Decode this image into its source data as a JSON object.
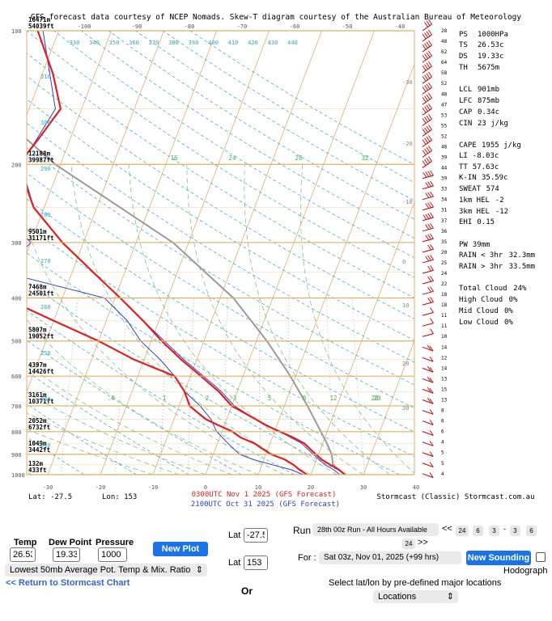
{
  "chart_data": {
    "type": "skew-t",
    "title": "GFS forecast data courtesy of NCEP Nomads.  Skew-T diagram courtesy of the Australian Bureau of Meteorology",
    "grid": true,
    "x_temp_ticks": [
      -30,
      -20,
      -10,
      0,
      10,
      20,
      30,
      40
    ],
    "top_temp_ticks": [
      -100,
      -90,
      -80,
      -70,
      -60,
      -50,
      -40
    ],
    "right_temp_ticks": [
      -30,
      -20,
      -10,
      0,
      10,
      20,
      30,
      40
    ],
    "theta_labels": [
      "330",
      "340",
      "350",
      "360",
      "370",
      "380",
      "390",
      "400",
      "410",
      "420",
      "430",
      "440"
    ],
    "theta_left_labels": [
      "310",
      "300",
      "290",
      "280",
      "270",
      "260",
      "250",
      "240",
      "230"
    ],
    "mixing_ratio_labels": [
      ".4",
      "1",
      "2",
      "3",
      "5",
      "8",
      "12",
      "20",
      "28",
      "24",
      "32",
      "16",
      "20"
    ],
    "pressure_levels": [
      {
        "p": 100,
        "label": "100",
        "h_m": "16471m",
        "h_ft": "54039ft"
      },
      {
        "p": 200,
        "label": "200",
        "h_m": "12188m",
        "h_ft": "39987ft"
      },
      {
        "p": 300,
        "label": "300",
        "h_m": "9501m",
        "h_ft": "31171ft"
      },
      {
        "p": 400,
        "label": "400",
        "h_m": "7468m",
        "h_ft": "24501ft"
      },
      {
        "p": 500,
        "label": "500",
        "h_m": "5807m",
        "h_ft": "19052ft"
      },
      {
        "p": 600,
        "label": "600",
        "h_m": "4397m",
        "h_ft": "14426ft"
      },
      {
        "p": 700,
        "label": "700",
        "h_m": "3161m",
        "h_ft": "10371ft"
      },
      {
        "p": 800,
        "label": "800",
        "h_m": "2052m",
        "h_ft": "6732ft"
      },
      {
        "p": 900,
        "label": "900",
        "h_m": "1049m",
        "h_ft": "3442ft"
      },
      {
        "p": 1000,
        "label": "1000",
        "h_m": "132m",
        "h_ft": "433ft"
      }
    ],
    "series": [
      {
        "name": "0300UTC Nov 1 2025 (GFS Forecast)",
        "color": "#e02020",
        "temperature": [
          [
            1000,
            26.5
          ],
          [
            975,
            25
          ],
          [
            950,
            23
          ],
          [
            925,
            21
          ],
          [
            900,
            19.5
          ],
          [
            875,
            18
          ],
          [
            850,
            16.5
          ],
          [
            825,
            14
          ],
          [
            800,
            11
          ],
          [
            775,
            8
          ],
          [
            750,
            5.5
          ],
          [
            700,
            0
          ],
          [
            650,
            -3.5
          ],
          [
            600,
            -8
          ],
          [
            550,
            -13
          ],
          [
            500,
            -18
          ],
          [
            450,
            -23
          ],
          [
            400,
            -29
          ],
          [
            350,
            -36
          ],
          [
            300,
            -44
          ],
          [
            250,
            -52
          ],
          [
            200,
            -58
          ],
          [
            175,
            -56
          ],
          [
            150,
            -54
          ],
          [
            125,
            -58
          ],
          [
            100,
            -64
          ]
        ],
        "dewpoint": [
          [
            1000,
            19.3
          ],
          [
            975,
            17.5
          ],
          [
            950,
            16
          ],
          [
            925,
            14
          ],
          [
            900,
            11
          ],
          [
            875,
            9
          ],
          [
            850,
            7
          ],
          [
            825,
            4
          ],
          [
            800,
            2
          ],
          [
            775,
            -1
          ],
          [
            750,
            -4
          ],
          [
            700,
            -8
          ],
          [
            650,
            -10
          ],
          [
            600,
            -13
          ],
          [
            550,
            -22
          ],
          [
            500,
            -30
          ],
          [
            450,
            -40
          ],
          [
            400,
            -51
          ],
          [
            350,
            -61
          ],
          [
            300,
            -64
          ],
          [
            250,
            -69
          ],
          [
            200,
            -76
          ],
          [
            150,
            -83
          ],
          [
            100,
            -90
          ]
        ]
      },
      {
        "name": "2100UTC Oct 31 2025 (GFS Forecast)",
        "color": "#3040d0",
        "temperature": [
          [
            1000,
            25.5
          ],
          [
            975,
            24
          ],
          [
            950,
            22
          ],
          [
            925,
            20.5
          ],
          [
            900,
            19
          ],
          [
            875,
            17.5
          ],
          [
            850,
            16
          ],
          [
            800,
            11
          ],
          [
            750,
            5.5
          ],
          [
            700,
            0.5
          ],
          [
            650,
            -3
          ],
          [
            600,
            -7.5
          ],
          [
            550,
            -12.5
          ],
          [
            500,
            -17.5
          ],
          [
            450,
            -23
          ],
          [
            400,
            -29
          ],
          [
            350,
            -36
          ],
          [
            300,
            -44
          ],
          [
            250,
            -52
          ],
          [
            200,
            -57.5
          ],
          [
            150,
            -55
          ],
          [
            100,
            -63
          ]
        ],
        "dewpoint": [
          [
            1000,
            18.5
          ],
          [
            975,
            16
          ],
          [
            950,
            12
          ],
          [
            925,
            8
          ],
          [
            900,
            5
          ],
          [
            850,
            2
          ],
          [
            800,
            -1
          ],
          [
            750,
            -3
          ],
          [
            700,
            -6
          ],
          [
            650,
            -10
          ],
          [
            600,
            -13
          ],
          [
            550,
            -17
          ],
          [
            500,
            -22
          ],
          [
            450,
            -26
          ],
          [
            400,
            -32
          ],
          [
            350,
            -53
          ],
          [
            300,
            -50
          ],
          [
            250,
            -59
          ],
          [
            200,
            -65
          ],
          [
            150,
            -76
          ],
          [
            100,
            -86
          ]
        ]
      },
      {
        "name": "parcel",
        "color": "#999999",
        "temperature": [
          [
            1000,
            26.5
          ],
          [
            950,
            23.5
          ],
          [
            900,
            22.5
          ],
          [
            850,
            20.8
          ],
          [
            800,
            18.8
          ],
          [
            700,
            14.4
          ],
          [
            600,
            9
          ],
          [
            500,
            2
          ],
          [
            400,
            -7.5
          ],
          [
            300,
            -23
          ],
          [
            200,
            -51
          ],
          [
            150,
            -67
          ],
          [
            120,
            -78
          ]
        ]
      }
    ],
    "wind_barb_labels": [
      "28",
      "48",
      "62",
      "64",
      "58",
      "52",
      "48",
      "47",
      "53",
      "55",
      "52",
      "48",
      "39",
      "44",
      "39",
      "33",
      "34",
      "31",
      "37",
      "36",
      "35",
      "20",
      "25",
      "24",
      "22",
      "18",
      "18",
      "11",
      "11",
      "10",
      "14",
      "12",
      "14",
      "13",
      "15",
      "13",
      "8",
      "6",
      "6",
      "4",
      "5",
      "5",
      "4"
    ],
    "indices": [
      {
        "k": "PS",
        "v": "1000HPa"
      },
      {
        "k": "TS",
        "v": "26.53c"
      },
      {
        "k": "DS",
        "v": "19.33c"
      },
      {
        "k": "TH",
        "v": "5675m"
      },
      {
        "k": "LCL",
        "v": "901mb"
      },
      {
        "k": "LFC",
        "v": "875mb"
      },
      {
        "k": "CAP",
        "v": "0.34c"
      },
      {
        "k": "CIN",
        "v": "23 j/kg"
      },
      {
        "k": "CAPE",
        "v": "1955 j/kg"
      },
      {
        "k": "LI",
        "v": "-8.03c"
      },
      {
        "k": "TT",
        "v": "57.63c"
      },
      {
        "k": "K-IN",
        "v": "35.59c"
      },
      {
        "k": "SWEAT",
        "v": "574"
      },
      {
        "k": "1km HEL",
        "v": "-2"
      },
      {
        "k": "3km HEL",
        "v": "-12"
      },
      {
        "k": "EHI",
        "v": "0.15"
      },
      {
        "k": "PW",
        "v": "39mm"
      },
      {
        "k": "RAIN < 3hr",
        "v": "32.3mm"
      },
      {
        "k": "RAIN > 3hr",
        "v": "33.5mm"
      },
      {
        "k": "Total Cloud",
        "v": "24%"
      },
      {
        "k": "High Cloud",
        "v": "0%"
      },
      {
        "k": "Mid Cloud",
        "v": "0%"
      },
      {
        "k": "Low Cloud",
        "v": "0%"
      }
    ],
    "footer_lat": "Lat: -27.5",
    "footer_lon": "Lon: 153",
    "footer_credit": "Stormcast (Classic) Stormcast.com.au",
    "legend_placement": "bottom-center"
  },
  "form": {
    "temp_label": "Temp",
    "temp_value": "26.53",
    "dew_label": "Dew Point",
    "dew_value": "19.33",
    "pressure_label": "Pressure",
    "pressure_value": "1000",
    "new_plot": "New Plot",
    "avg_select": "Lowest 50mb Average Pot. Temp & Mix. Ratio",
    "return_link": "<< Return to Stormcast Chart",
    "lat_label": "Lat",
    "lat_value": "-27.5",
    "lat2_label": "Lat",
    "lat2_value": "153",
    "or_label": "Or",
    "run_label": "Run",
    "run_select": "28th 00z Run - All Hours Available",
    "nav_prev": "<<",
    "hours": [
      "24",
      "6",
      "3",
      "-",
      "3",
      "6",
      "24"
    ],
    "nav_next": ">>",
    "for_label": "For :",
    "for_select": "Sat 03z, Nov 01, 2025 (+99 hrs)",
    "new_sounding": "New Sounding",
    "hodograph_label": "Hodograph",
    "select_text": "Select lat/lon by pre-defined major locations",
    "locations_select": "Locations"
  }
}
